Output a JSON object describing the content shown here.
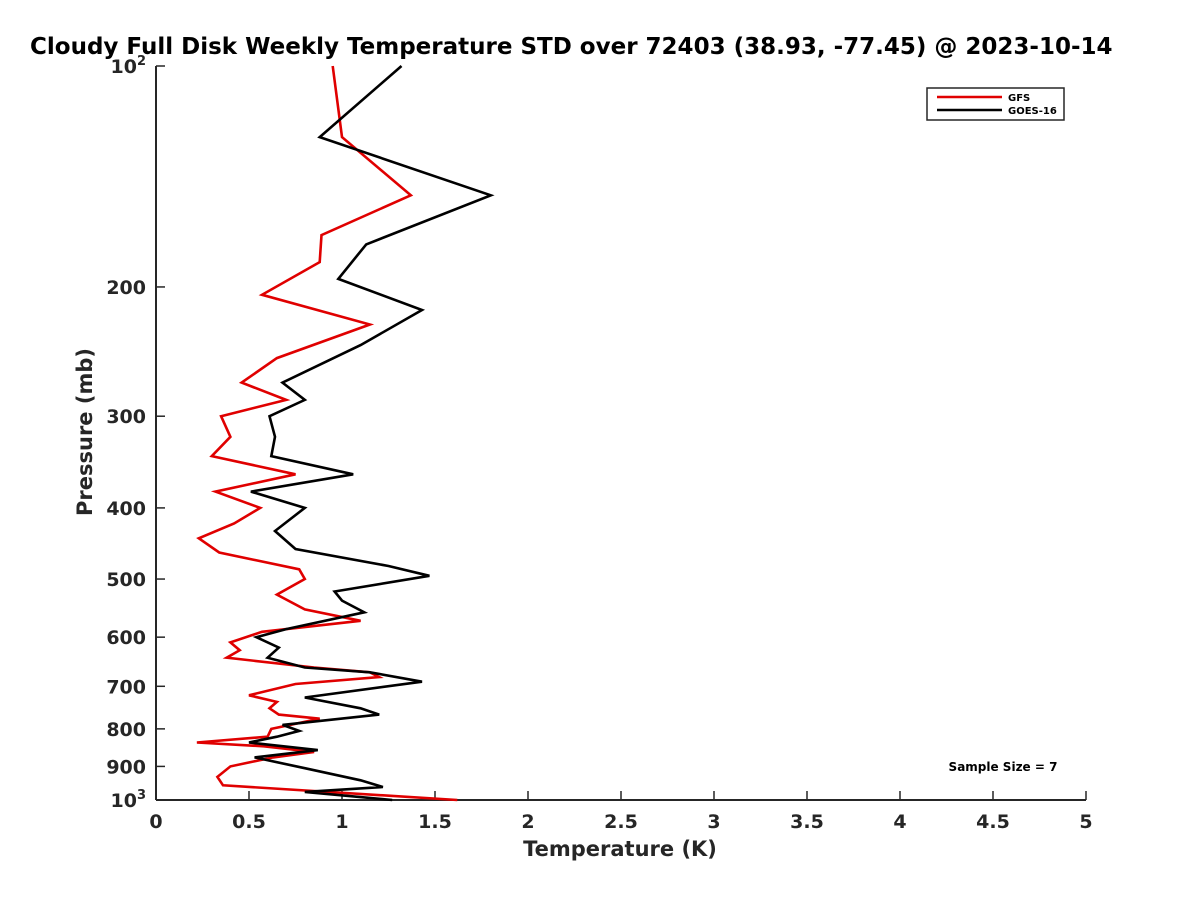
{
  "chart_data": {
    "type": "line",
    "title": "Cloudy Full Disk Weekly Temperature STD over 72403 (38.93, -77.45) @ 2023-10-14",
    "xlabel": "Temperature (K)",
    "ylabel": "Pressure (mb)",
    "xlim": [
      0,
      5
    ],
    "ylim": [
      100,
      1000
    ],
    "yscale": "log",
    "y_reversed": true,
    "grid": false,
    "legend_position": "top-right",
    "x_ticks": [
      "0",
      "0.5",
      "1",
      "1.5",
      "2",
      "2.5",
      "3",
      "3.5",
      "4",
      "4.5",
      "5"
    ],
    "y_ticks": [
      {
        "value": 100,
        "base": "10",
        "exp": "2"
      },
      {
        "value": 200,
        "label": "200"
      },
      {
        "value": 300,
        "label": "300"
      },
      {
        "value": 400,
        "label": "400"
      },
      {
        "value": 500,
        "label": "500"
      },
      {
        "value": 600,
        "label": "600"
      },
      {
        "value": 700,
        "label": "700"
      },
      {
        "value": 800,
        "label": "800"
      },
      {
        "value": 900,
        "label": "900"
      },
      {
        "value": 1000,
        "base": "10",
        "exp": "3"
      }
    ],
    "annotation": "Sample Size = 7",
    "series": [
      {
        "name": "GFS",
        "color": "#e00000",
        "points": [
          [
            0.95,
            100
          ],
          [
            1.0,
            125
          ],
          [
            1.37,
            150
          ],
          [
            0.89,
            170
          ],
          [
            0.88,
            185
          ],
          [
            0.57,
            205
          ],
          [
            1.15,
            225
          ],
          [
            0.65,
            250
          ],
          [
            0.46,
            270
          ],
          [
            0.7,
            285
          ],
          [
            0.35,
            300
          ],
          [
            0.4,
            320
          ],
          [
            0.3,
            340
          ],
          [
            0.75,
            360
          ],
          [
            0.32,
            380
          ],
          [
            0.56,
            400
          ],
          [
            0.42,
            420
          ],
          [
            0.23,
            440
          ],
          [
            0.34,
            460
          ],
          [
            0.77,
            485
          ],
          [
            0.8,
            500
          ],
          [
            0.65,
            525
          ],
          [
            0.8,
            550
          ],
          [
            1.1,
            570
          ],
          [
            0.57,
            590
          ],
          [
            0.4,
            610
          ],
          [
            0.45,
            625
          ],
          [
            0.38,
            640
          ],
          [
            0.85,
            660
          ],
          [
            1.15,
            670
          ],
          [
            1.2,
            680
          ],
          [
            0.75,
            695
          ],
          [
            0.5,
            720
          ],
          [
            0.65,
            735
          ],
          [
            0.61,
            750
          ],
          [
            0.66,
            765
          ],
          [
            0.88,
            775
          ],
          [
            0.62,
            800
          ],
          [
            0.6,
            820
          ],
          [
            0.22,
            835
          ],
          [
            0.58,
            845
          ],
          [
            0.85,
            860
          ],
          [
            0.63,
            875
          ],
          [
            0.4,
            900
          ],
          [
            0.33,
            930
          ],
          [
            0.36,
            955
          ],
          [
            1.62,
            1000
          ]
        ]
      },
      {
        "name": "GOES-16",
        "color": "#000000",
        "points": [
          [
            1.32,
            100
          ],
          [
            0.88,
            125
          ],
          [
            1.8,
            150
          ],
          [
            1.13,
            175
          ],
          [
            0.98,
            195
          ],
          [
            1.43,
            215
          ],
          [
            1.1,
            240
          ],
          [
            0.68,
            270
          ],
          [
            0.8,
            285
          ],
          [
            0.61,
            300
          ],
          [
            0.64,
            320
          ],
          [
            0.62,
            340
          ],
          [
            1.06,
            360
          ],
          [
            0.51,
            380
          ],
          [
            0.8,
            400
          ],
          [
            0.64,
            430
          ],
          [
            0.75,
            455
          ],
          [
            1.25,
            480
          ],
          [
            1.47,
            495
          ],
          [
            0.96,
            520
          ],
          [
            1.0,
            535
          ],
          [
            1.12,
            555
          ],
          [
            0.7,
            585
          ],
          [
            0.54,
            600
          ],
          [
            0.66,
            620
          ],
          [
            0.6,
            640
          ],
          [
            0.8,
            660
          ],
          [
            1.15,
            670
          ],
          [
            1.43,
            690
          ],
          [
            0.8,
            725
          ],
          [
            1.1,
            750
          ],
          [
            1.2,
            765
          ],
          [
            0.68,
            790
          ],
          [
            0.77,
            805
          ],
          [
            0.65,
            820
          ],
          [
            0.5,
            835
          ],
          [
            0.87,
            855
          ],
          [
            0.53,
            875
          ],
          [
            0.8,
            905
          ],
          [
            1.1,
            940
          ],
          [
            1.22,
            960
          ],
          [
            0.8,
            975
          ],
          [
            1.27,
            1000
          ]
        ]
      }
    ]
  }
}
